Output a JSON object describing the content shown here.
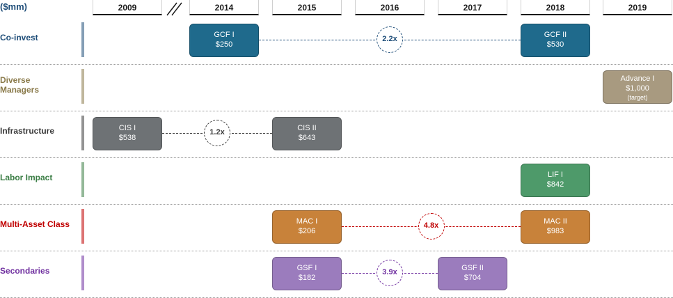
{
  "header": {
    "unit": "($mm)",
    "years": [
      "2009",
      "2014",
      "2015",
      "2016",
      "2017",
      "2018",
      "2019"
    ]
  },
  "rows": [
    {
      "label": "Co-invest",
      "color": "#1f4e79",
      "funds": [
        {
          "name": "GCF I",
          "amount": "$250",
          "year": "2014",
          "color": "#1f6a8c"
        },
        {
          "name": "GCF II",
          "amount": "$530",
          "year": "2018",
          "color": "#1f6a8c"
        }
      ],
      "link": {
        "from": "2014",
        "to": "2018",
        "multiple": "2.2x",
        "color": "#1f4e79"
      }
    },
    {
      "label": "Diverse Managers",
      "color": "#8a7a4a",
      "funds": [
        {
          "name": "Advance I",
          "amount": "$1,000",
          "note": "(target)",
          "year": "2019",
          "color": "#a89a80"
        }
      ]
    },
    {
      "label": "Infrastructure",
      "color": "#3a3a3a",
      "funds": [
        {
          "name": "CIS I",
          "amount": "$538",
          "year": "2009",
          "color": "#6e7275"
        },
        {
          "name": "CIS II",
          "amount": "$643",
          "year": "2015",
          "color": "#6e7275"
        }
      ],
      "link": {
        "from": "2009",
        "to": "2015",
        "multiple": "1.2x",
        "color": "#3a3a3a"
      }
    },
    {
      "label": "Labor Impact",
      "color": "#3a7d44",
      "funds": [
        {
          "name": "LIF I",
          "amount": "$842",
          "year": "2018",
          "color": "#4e9a6a"
        }
      ]
    },
    {
      "label": "Multi-Asset Class",
      "color": "#c00000",
      "funds": [
        {
          "name": "MAC I",
          "amount": "$206",
          "year": "2015",
          "color": "#c8823a"
        },
        {
          "name": "MAC II",
          "amount": "$983",
          "year": "2018",
          "color": "#c8823a"
        }
      ],
      "link": {
        "from": "2015",
        "to": "2018",
        "multiple": "4.8x",
        "color": "#c00000"
      }
    },
    {
      "label": "Secondaries",
      "color": "#7030a0",
      "funds": [
        {
          "name": "GSF I",
          "amount": "$182",
          "year": "2015",
          "color": "#9b7cbd"
        },
        {
          "name": "GSF II",
          "amount": "$704",
          "year": "2017",
          "color": "#9b7cbd"
        }
      ],
      "link": {
        "from": "2015",
        "to": "2017",
        "multiple": "3.9x",
        "color": "#7030a0"
      }
    }
  ]
}
